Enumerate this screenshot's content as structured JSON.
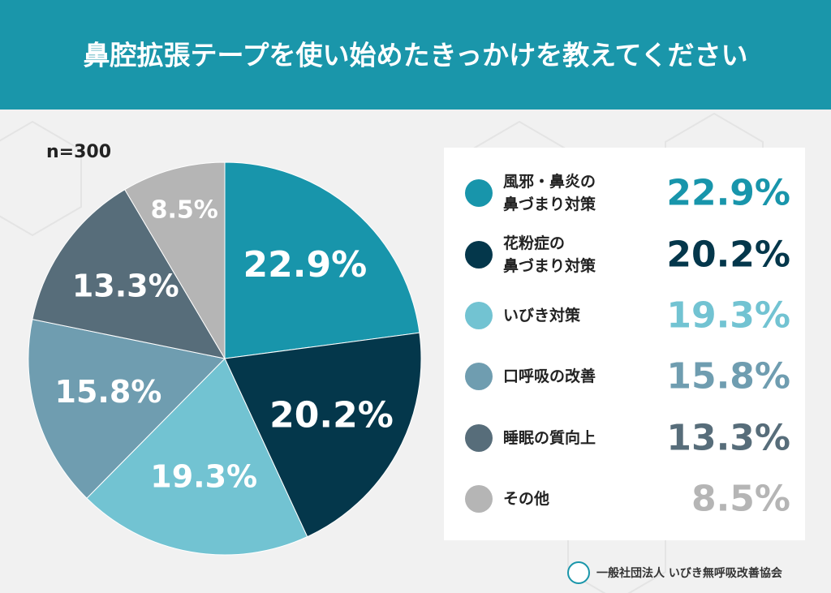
{
  "chart_data": {
    "type": "pie",
    "title": "鼻腔拡張テープを使い始めたきっかけを教えてください",
    "note": "n=300",
    "categories": [
      "風邪・鼻炎の\n鼻づまり対策",
      "花粉症の\n鼻づまり対策",
      "いびき対策",
      "口呼吸の改善",
      "睡眠の質向上",
      "その他"
    ],
    "values": [
      22.9,
      20.2,
      19.3,
      15.8,
      13.3,
      8.5
    ],
    "value_labels": [
      "22.9%",
      "20.2%",
      "19.3%",
      "15.8%",
      "13.3%",
      "8.5%"
    ],
    "colors": [
      "#1895ab",
      "#04374b",
      "#72c3d2",
      "#6f9db0",
      "#576d7a",
      "#b5b5b5"
    ],
    "source": "一般社団法人 いびき無呼吸改善協会"
  }
}
